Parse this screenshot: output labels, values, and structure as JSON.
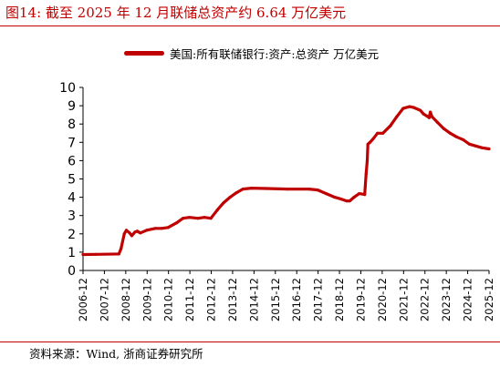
{
  "header": {
    "title": "图14:   截至 2025 年 12 月联储总资产约 6.64 万亿美元"
  },
  "footer": {
    "source": "资料来源：Wind, 浙商证券研究所"
  },
  "colors": {
    "accent": "#c00000",
    "series": "#c00000",
    "axis": "#000000"
  },
  "chart_data": {
    "type": "line",
    "title": "",
    "xlabel": "",
    "ylabel": "",
    "ylim": [
      0,
      10
    ],
    "yticks": [
      0,
      1,
      2,
      3,
      4,
      5,
      6,
      7,
      8,
      9,
      10
    ],
    "xlim": [
      2006.92,
      2025.92
    ],
    "xticks": [
      "2006-12",
      "2007-12",
      "2008-12",
      "2009-12",
      "2010-12",
      "2011-12",
      "2012-12",
      "2013-12",
      "2014-12",
      "2015-12",
      "2016-12",
      "2017-12",
      "2018-12",
      "2019-12",
      "2020-12",
      "2021-12",
      "2022-12",
      "2023-12",
      "2024-12",
      "2025-12"
    ],
    "grid": false,
    "legend": "top",
    "series": [
      {
        "name": "美国:所有联储银行:资产:总资产 万亿美元",
        "x": [
          2006.92,
          2007.5,
          2008.6,
          2008.7,
          2008.85,
          2008.95,
          2009.1,
          2009.2,
          2009.35,
          2009.45,
          2009.6,
          2009.9,
          2010.3,
          2010.6,
          2010.9,
          2011.3,
          2011.6,
          2011.9,
          2012.3,
          2012.6,
          2012.9,
          2013.2,
          2013.5,
          2013.8,
          2014.1,
          2014.4,
          2014.8,
          2015.5,
          2016.5,
          2017.5,
          2017.9,
          2018.3,
          2018.7,
          2019.0,
          2019.25,
          2019.4,
          2019.6,
          2019.85,
          2020.1,
          2020.17,
          2020.22,
          2020.25,
          2020.35,
          2020.5,
          2020.7,
          2020.95,
          2021.3,
          2021.6,
          2021.9,
          2022.2,
          2022.4,
          2022.7,
          2022.85,
          2023.0,
          2023.12,
          2023.17,
          2023.25,
          2023.5,
          2023.8,
          2024.1,
          2024.4,
          2024.7,
          2025.0,
          2025.3,
          2025.6,
          2025.92
        ],
        "values": [
          0.87,
          0.88,
          0.9,
          1.2,
          2.0,
          2.2,
          2.05,
          1.9,
          2.1,
          2.15,
          2.05,
          2.2,
          2.3,
          2.3,
          2.35,
          2.6,
          2.85,
          2.9,
          2.85,
          2.9,
          2.85,
          3.3,
          3.7,
          4.0,
          4.25,
          4.45,
          4.5,
          4.48,
          4.45,
          4.45,
          4.4,
          4.2,
          4.0,
          3.9,
          3.8,
          3.8,
          4.0,
          4.2,
          4.15,
          5.3,
          6.0,
          6.9,
          7.0,
          7.2,
          7.5,
          7.5,
          7.9,
          8.4,
          8.85,
          8.95,
          8.9,
          8.75,
          8.55,
          8.45,
          8.35,
          8.65,
          8.4,
          8.1,
          7.75,
          7.5,
          7.3,
          7.15,
          6.9,
          6.8,
          6.7,
          6.64
        ]
      }
    ]
  }
}
